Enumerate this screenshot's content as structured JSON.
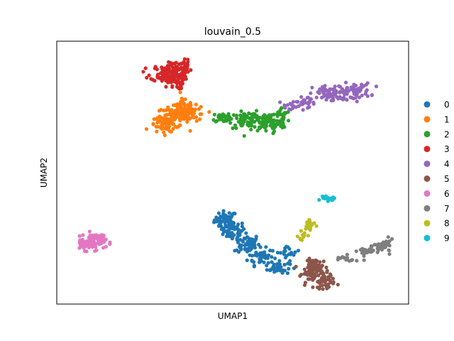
{
  "chart_data": {
    "type": "scatter",
    "title": "louvain_0.5",
    "xlabel": "UMAP1",
    "ylabel": "UMAP2",
    "xlim": [
      0,
      100
    ],
    "ylim": [
      0,
      100
    ],
    "ticks": "none",
    "grid": false,
    "legend": "right",
    "series": [
      {
        "name": "0",
        "color": "#1f77b4",
        "n": 260,
        "blobs": [
          {
            "cx": 48,
            "cy": 32,
            "sx": 1.6,
            "sy": 1.7,
            "w": 1
          },
          {
            "cx": 50,
            "cy": 28,
            "sx": 1.8,
            "sy": 1.8,
            "w": 1.2
          },
          {
            "cx": 54,
            "cy": 23,
            "sx": 1.8,
            "sy": 1.8,
            "w": 1.2
          },
          {
            "cx": 58,
            "cy": 18,
            "sx": 1.8,
            "sy": 1.6,
            "w": 1.1
          },
          {
            "cx": 63,
            "cy": 14,
            "sx": 1.6,
            "sy": 1.4,
            "w": 0.9
          },
          {
            "cx": 66,
            "cy": 20,
            "sx": 1.6,
            "sy": 1.1,
            "w": 0.4
          }
        ]
      },
      {
        "name": "1",
        "color": "#ff7f0e",
        "n": 210,
        "blobs": [
          {
            "cx": 33,
            "cy": 71,
            "sx": 2.2,
            "sy": 2.0,
            "w": 1
          },
          {
            "cx": 36,
            "cy": 74,
            "sx": 2.0,
            "sy": 2.0,
            "w": 1
          },
          {
            "cx": 30,
            "cy": 68,
            "sx": 1.7,
            "sy": 1.6,
            "w": 0.8
          },
          {
            "cx": 39,
            "cy": 72,
            "sx": 1.8,
            "sy": 1.6,
            "w": 0.6
          }
        ]
      },
      {
        "name": "2",
        "color": "#2ca02c",
        "n": 210,
        "blobs": [
          {
            "cx": 55,
            "cy": 70,
            "sx": 3.0,
            "sy": 1.5,
            "w": 1.2
          },
          {
            "cx": 60,
            "cy": 69,
            "sx": 2.5,
            "sy": 1.8,
            "w": 1
          },
          {
            "cx": 48,
            "cy": 71,
            "sx": 2.0,
            "sy": 1.0,
            "w": 0.5
          },
          {
            "cx": 64,
            "cy": 72,
            "sx": 1.2,
            "sy": 1.4,
            "w": 0.3
          }
        ]
      },
      {
        "name": "3",
        "color": "#d62728",
        "n": 180,
        "blobs": [
          {
            "cx": 31,
            "cy": 88,
            "sx": 2.2,
            "sy": 1.6,
            "w": 1
          },
          {
            "cx": 33,
            "cy": 85,
            "sx": 1.6,
            "sy": 1.6,
            "w": 0.7
          },
          {
            "cx": 35,
            "cy": 90,
            "sx": 1.6,
            "sy": 1.5,
            "w": 0.6
          }
        ]
      },
      {
        "name": "4",
        "color": "#9467bd",
        "n": 160,
        "blobs": [
          {
            "cx": 78,
            "cy": 80,
            "sx": 2.6,
            "sy": 1.6,
            "w": 1
          },
          {
            "cx": 84,
            "cy": 81,
            "sx": 2.6,
            "sy": 1.5,
            "w": 1
          },
          {
            "cx": 71,
            "cy": 77,
            "sx": 2.2,
            "sy": 1.0,
            "w": 0.4
          },
          {
            "cx": 66,
            "cy": 75,
            "sx": 1.6,
            "sy": 0.8,
            "w": 0.2
          }
        ]
      },
      {
        "name": "5",
        "color": "#8c564b",
        "n": 130,
        "blobs": [
          {
            "cx": 74,
            "cy": 14,
            "sx": 1.6,
            "sy": 1.6,
            "w": 1
          },
          {
            "cx": 76,
            "cy": 9,
            "sx": 1.5,
            "sy": 1.5,
            "w": 0.8
          },
          {
            "cx": 72,
            "cy": 11,
            "sx": 1.2,
            "sy": 1.3,
            "w": 0.4
          }
        ]
      },
      {
        "name": "6",
        "color": "#e377c2",
        "n": 110,
        "blobs": [
          {
            "cx": 11,
            "cy": 24,
            "sx": 1.5,
            "sy": 1.6,
            "w": 1
          },
          {
            "cx": 8,
            "cy": 23,
            "sx": 1.3,
            "sy": 1.2,
            "w": 0.7
          }
        ]
      },
      {
        "name": "7",
        "color": "#7f7f7f",
        "n": 75,
        "blobs": [
          {
            "cx": 93,
            "cy": 22,
            "sx": 1.4,
            "sy": 1.2,
            "w": 1
          },
          {
            "cx": 88,
            "cy": 20,
            "sx": 2.0,
            "sy": 0.8,
            "w": 0.6
          },
          {
            "cx": 82,
            "cy": 17,
            "sx": 1.8,
            "sy": 0.7,
            "w": 0.4
          }
        ]
      },
      {
        "name": "8",
        "color": "#bcbd22",
        "n": 30,
        "blobs": [
          {
            "cx": 72,
            "cy": 30,
            "sx": 0.8,
            "sy": 1.6,
            "w": 1
          },
          {
            "cx": 70,
            "cy": 26,
            "sx": 0.7,
            "sy": 1.2,
            "w": 0.6
          }
        ]
      },
      {
        "name": "9",
        "color": "#17becf",
        "n": 18,
        "blobs": [
          {
            "cx": 77,
            "cy": 40,
            "sx": 1.0,
            "sy": 0.4,
            "w": 1
          }
        ]
      }
    ]
  }
}
